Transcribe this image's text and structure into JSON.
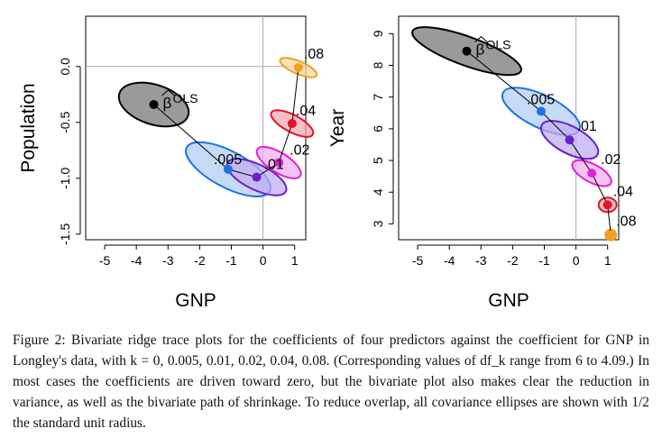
{
  "chart_data": [
    {
      "type": "scatter",
      "title": "",
      "xlabel": "GNP",
      "ylabel": "Population",
      "xlim": [
        -5.6,
        1.35
      ],
      "ylim": [
        -1.55,
        0.45
      ],
      "xticks": [
        "-5",
        "-4",
        "-3",
        "-2",
        "-1",
        "0",
        "1"
      ],
      "yticks": [
        "0.0",
        "-0.5",
        "-1.0",
        "-1.5"
      ],
      "reference_lines": {
        "x": 0,
        "y": 0
      },
      "ols_label": "OLS",
      "points": [
        {
          "label": "",
          "x": -3.45,
          "y": -0.34,
          "color": "#000000",
          "fill": "#8f8f8f"
        },
        {
          "label": ".005",
          "x": -1.1,
          "y": -0.92,
          "color": "#1a72e8",
          "fill": "#b4cdf2"
        },
        {
          "label": ".01",
          "x": -0.2,
          "y": -0.99,
          "color": "#6a1fd0",
          "fill": "#c2aef0"
        },
        {
          "label": ".02",
          "x": 0.5,
          "y": -0.86,
          "color": "#e020d8",
          "fill": "#f2b0ee"
        },
        {
          "label": ".04",
          "x": 0.92,
          "y": -0.51,
          "color": "#e8102a",
          "fill": "#f2a9b2"
        },
        {
          "label": ".08",
          "x": 1.12,
          "y": -0.01,
          "color": "#f0a020",
          "fill": "#f5d8a0"
        }
      ]
    },
    {
      "type": "scatter",
      "title": "",
      "xlabel": "GNP",
      "ylabel": "Year",
      "xlim": [
        -5.6,
        1.35
      ],
      "ylim": [
        2.5,
        9.55
      ],
      "xticks": [
        "-5",
        "-4",
        "-3",
        "-2",
        "-1",
        "0",
        "1"
      ],
      "yticks": [
        "3",
        "4",
        "5",
        "6",
        "7",
        "8",
        "9"
      ],
      "reference_lines": {
        "x": 0
      },
      "ols_label": "OLS",
      "points": [
        {
          "label": "",
          "x": -3.45,
          "y": 8.45,
          "color": "#000000",
          "fill": "#8f8f8f"
        },
        {
          "label": ".005",
          "x": -1.1,
          "y": 6.55,
          "color": "#1a72e8",
          "fill": "#b4cdf2"
        },
        {
          "label": ".01",
          "x": -0.2,
          "y": 5.65,
          "color": "#6a1fd0",
          "fill": "#c2aef0"
        },
        {
          "label": ".02",
          "x": 0.5,
          "y": 4.6,
          "color": "#e020d8",
          "fill": "#f2b0ee"
        },
        {
          "label": ".04",
          "x": 1.0,
          "y": 3.6,
          "color": "#e8102a",
          "fill": "#f2a9b2"
        },
        {
          "label": ".08",
          "x": 1.1,
          "y": 2.65,
          "color": "#f0a020",
          "fill": "#f5d8a0"
        }
      ]
    }
  ],
  "caption": {
    "text": "Figure 2: Bivariate ridge trace plots for the coefficients of four predictors against the coefficient for GNP in Longley's data, with k = 0, 0.005, 0.01, 0.02, 0.04, 0.08. (Corresponding values of df_k range from 6 to 4.09.) In most cases the coefficients are driven toward zero, but the bivariate plot also makes clear the reduction in variance, as well as the bivariate path of shrinkage. To reduce overlap, all covariance ellipses are shown with 1/2 the standard unit radius."
  }
}
